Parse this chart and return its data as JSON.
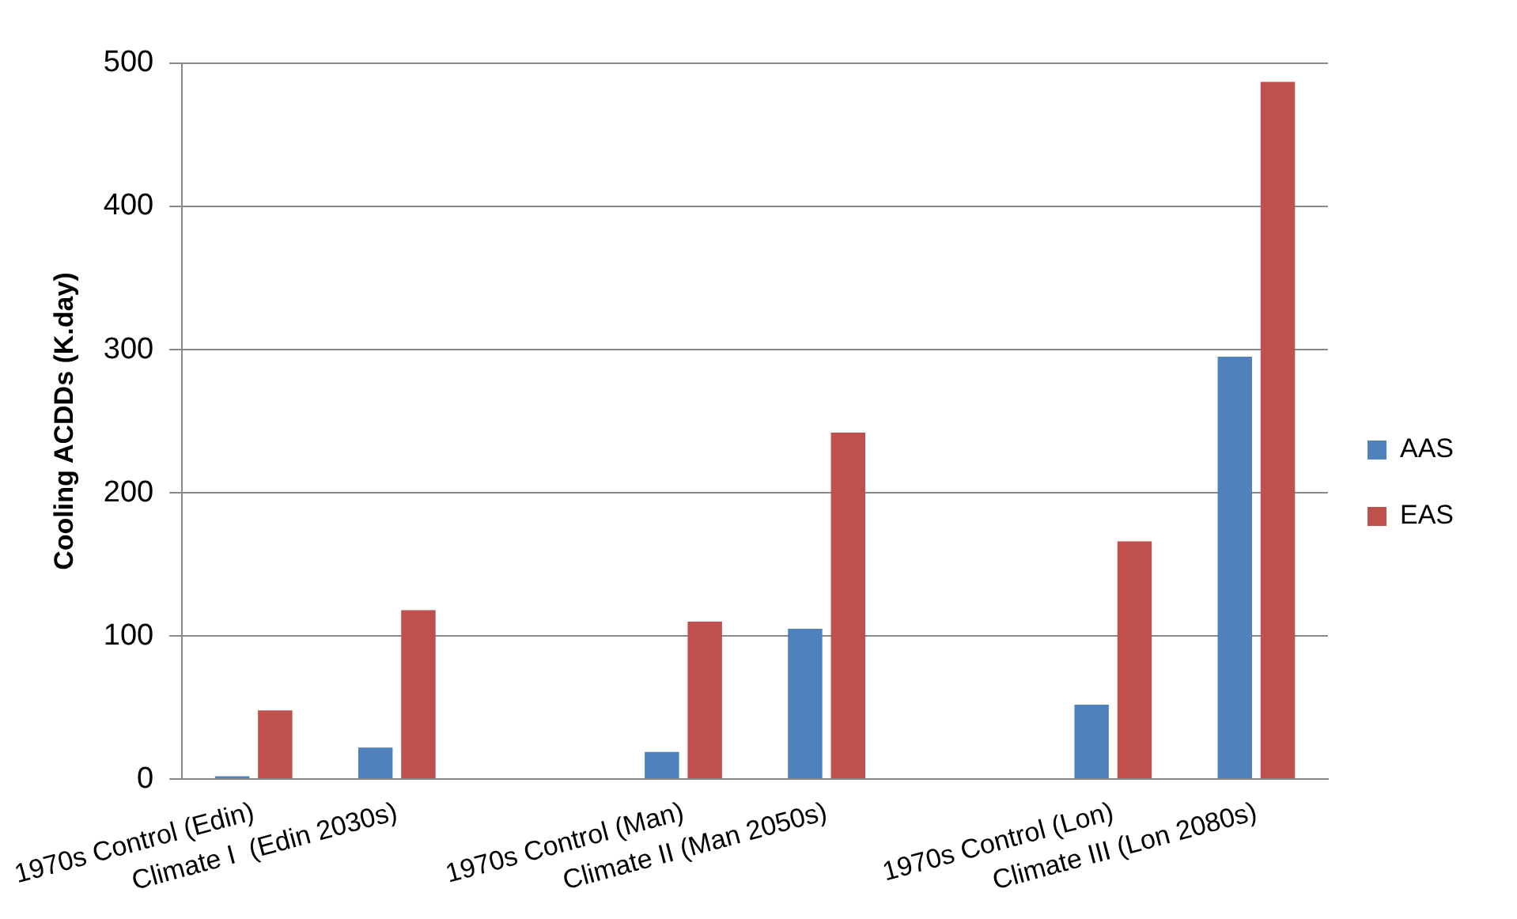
{
  "chart_data": {
    "type": "bar",
    "ylabel": "Cooling ACDDs (K.day)",
    "categories": [
      "1970s Control (Edin)",
      "Climate I  (Edin 2030s)",
      null,
      "1970s Control (Man)",
      "Climate II (Man 2050s)",
      null,
      "1970s Control (Lon)",
      "Climate III (Lon 2080s)"
    ],
    "series": [
      {
        "name": "AAS",
        "color": "#4f81bd",
        "values": [
          2,
          22,
          null,
          19,
          105,
          null,
          52,
          295
        ]
      },
      {
        "name": "EAS",
        "color": "#c0504d",
        "values": [
          48,
          118,
          null,
          110,
          242,
          null,
          166,
          487
        ]
      }
    ],
    "ylim": [
      0,
      500
    ],
    "yticks": [
      0,
      100,
      200,
      300,
      400,
      500
    ],
    "grid": "y",
    "legend": "right"
  }
}
